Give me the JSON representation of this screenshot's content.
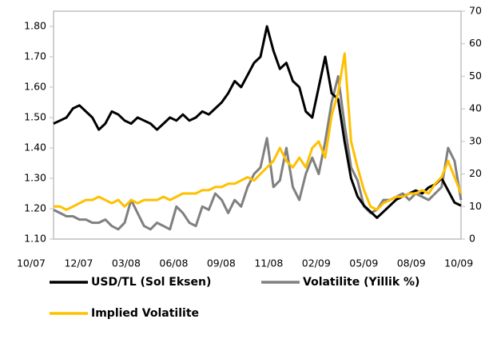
{
  "chart_data": {
    "type": "line",
    "categories": [
      "10/07",
      null,
      null,
      null,
      null,
      null,
      null,
      "12/07",
      null,
      null,
      null,
      null,
      null,
      null,
      "03/08",
      null,
      null,
      null,
      null,
      null,
      null,
      "06/08",
      null,
      null,
      null,
      null,
      null,
      null,
      "09/08",
      null,
      null,
      null,
      null,
      null,
      null,
      "11/08",
      null,
      null,
      null,
      null,
      null,
      null,
      "02/09",
      null,
      null,
      null,
      null,
      null,
      null,
      "05/09",
      null,
      null,
      null,
      null,
      null,
      null,
      "08/09",
      null,
      null,
      null,
      null,
      null,
      null,
      "10/09"
    ],
    "series": [
      {
        "name": "USD/TL (Sol Eksen)",
        "color": "#000000",
        "axis": "y",
        "values": [
          1.48,
          1.49,
          1.5,
          1.53,
          1.54,
          1.52,
          1.5,
          1.46,
          1.48,
          1.52,
          1.51,
          1.49,
          1.48,
          1.5,
          1.49,
          1.48,
          1.46,
          1.48,
          1.5,
          1.49,
          1.51,
          1.49,
          1.5,
          1.52,
          1.51,
          1.53,
          1.55,
          1.58,
          1.62,
          1.6,
          1.64,
          1.68,
          1.7,
          1.8,
          1.72,
          1.66,
          1.68,
          1.62,
          1.6,
          1.52,
          1.5,
          1.6,
          1.7,
          1.58,
          1.56,
          1.42,
          1.3,
          1.24,
          1.21,
          1.19,
          1.17,
          1.19,
          1.21,
          1.23,
          1.24,
          1.25,
          1.26,
          1.25,
          1.27,
          1.28,
          1.3,
          1.26,
          1.22,
          1.21
        ]
      },
      {
        "name": "Volatilite (Yillik %)",
        "color": "#808080",
        "axis": "y2",
        "values": [
          9,
          8,
          7,
          7,
          6,
          6,
          5,
          5,
          6,
          4,
          3,
          5,
          12,
          8,
          4,
          3,
          5,
          4,
          3,
          10,
          8,
          5,
          4,
          10,
          9,
          14,
          12,
          8,
          12,
          10,
          16,
          20,
          22,
          31,
          16,
          18,
          28,
          16,
          12,
          20,
          25,
          20,
          30,
          42,
          50,
          35,
          22,
          18,
          10,
          8,
          9,
          12,
          12,
          13,
          14,
          12,
          14,
          13,
          12,
          14,
          16,
          28,
          24,
          12
        ]
      },
      {
        "name": "Implied Volatilite",
        "color": "#ffc000",
        "axis": "y2",
        "values": [
          10,
          10,
          9,
          10,
          11,
          12,
          12,
          13,
          12,
          11,
          12,
          10,
          12,
          11,
          12,
          12,
          12,
          13,
          12,
          13,
          14,
          14,
          14,
          15,
          15,
          16,
          16,
          17,
          17,
          18,
          19,
          18,
          20,
          22,
          24,
          28,
          24,
          22,
          25,
          22,
          28,
          30,
          25,
          38,
          45,
          57,
          30,
          22,
          15,
          10,
          9,
          11,
          12,
          13,
          13,
          14,
          14,
          15,
          14,
          17,
          19,
          24,
          19,
          14
        ]
      }
    ],
    "ylim": [
      1.1,
      1.85
    ],
    "yticks": [
      {
        "value": 1.1,
        "label": "1.10"
      },
      {
        "value": 1.2,
        "label": "1.20"
      },
      {
        "value": 1.3,
        "label": "1.30"
      },
      {
        "value": 1.4,
        "label": "1.40"
      },
      {
        "value": 1.5,
        "label": "1.50"
      },
      {
        "value": 1.6,
        "label": "1.60"
      },
      {
        "value": 1.7,
        "label": "1.70"
      },
      {
        "value": 1.8,
        "label": "1.80"
      }
    ],
    "y2lim": [
      0,
      70
    ],
    "y2ticks": [
      0,
      10,
      20,
      30,
      40,
      50,
      60,
      70
    ]
  }
}
